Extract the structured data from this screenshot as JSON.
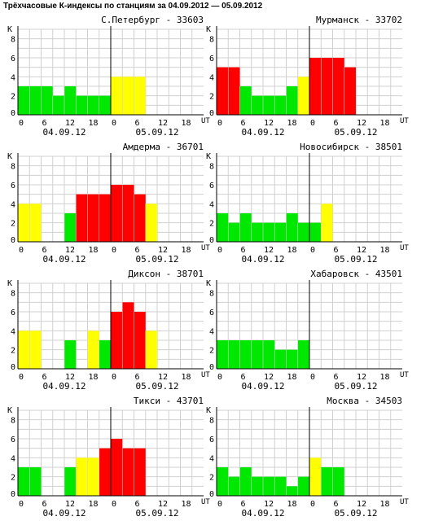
{
  "page": {
    "title": "Трёхчасовые К-индексы по станциям за 04.09.2012 — 05.09.2012"
  },
  "axis": {
    "y_letter": "К",
    "y_ticks": [
      "0",
      "2",
      "4",
      "6",
      "8"
    ],
    "x_ticks": [
      "0",
      "6",
      "12",
      "18",
      "0",
      "6",
      "12",
      "18"
    ],
    "x_unit": "UT",
    "dates": [
      "04.09.12",
      "05.09.12"
    ]
  },
  "colors": {
    "quiet": "#00e800",
    "unsettled": "#ffff00",
    "storm": "#ff0000",
    "grid": "#d0d0d0"
  },
  "chart_data": [
    {
      "type": "bar",
      "title": "С.Петербург - 33603",
      "ylim": [
        0,
        9
      ],
      "x": [
        "0",
        "3",
        "6",
        "9",
        "12",
        "15",
        "18",
        "21",
        "0",
        "3",
        "6",
        "9",
        "12",
        "15",
        "18",
        "21"
      ],
      "values": [
        3,
        3,
        3,
        2,
        3,
        2,
        2,
        2,
        4,
        4,
        4,
        null,
        null,
        null,
        null,
        null
      ]
    },
    {
      "type": "bar",
      "title": "Мурманск - 33702",
      "ylim": [
        0,
        9
      ],
      "x": [
        "0",
        "3",
        "6",
        "9",
        "12",
        "15",
        "18",
        "21",
        "0",
        "3",
        "6",
        "9",
        "12",
        "15",
        "18",
        "21"
      ],
      "values": [
        5,
        5,
        3,
        2,
        2,
        2,
        3,
        4,
        6,
        6,
        6,
        5,
        null,
        null,
        null,
        null
      ]
    },
    {
      "type": "bar",
      "title": "Амдерма - 36701",
      "ylim": [
        0,
        9
      ],
      "x": [
        "0",
        "3",
        "6",
        "9",
        "12",
        "15",
        "18",
        "21",
        "0",
        "3",
        "6",
        "9",
        "12",
        "15",
        "18",
        "21"
      ],
      "values": [
        4,
        4,
        null,
        null,
        3,
        5,
        5,
        5,
        6,
        6,
        5,
        4,
        null,
        null,
        null,
        null
      ]
    },
    {
      "type": "bar",
      "title": "Новосибирск - 38501",
      "ylim": [
        0,
        9
      ],
      "x": [
        "0",
        "3",
        "6",
        "9",
        "12",
        "15",
        "18",
        "21",
        "0",
        "3",
        "6",
        "9",
        "12",
        "15",
        "18",
        "21"
      ],
      "values": [
        3,
        2,
        3,
        2,
        2,
        2,
        3,
        2,
        2,
        4,
        null,
        null,
        null,
        null,
        null,
        null
      ]
    },
    {
      "type": "bar",
      "title": "Диксон - 38701",
      "ylim": [
        0,
        9
      ],
      "x": [
        "0",
        "3",
        "6",
        "9",
        "12",
        "15",
        "18",
        "21",
        "0",
        "3",
        "6",
        "9",
        "12",
        "15",
        "18",
        "21"
      ],
      "values": [
        4,
        4,
        null,
        null,
        3,
        null,
        4,
        3,
        6,
        7,
        6,
        4,
        null,
        null,
        null,
        null
      ]
    },
    {
      "type": "bar",
      "title": "Хабаровск - 43501",
      "ylim": [
        0,
        9
      ],
      "x": [
        "0",
        "3",
        "6",
        "9",
        "12",
        "15",
        "18",
        "21",
        "0",
        "3",
        "6",
        "9",
        "12",
        "15",
        "18",
        "21"
      ],
      "values": [
        3,
        3,
        3,
        3,
        3,
        2,
        2,
        3,
        null,
        null,
        null,
        null,
        null,
        null,
        null,
        null
      ]
    },
    {
      "type": "bar",
      "title": "Тикси - 43701",
      "ylim": [
        0,
        9
      ],
      "x": [
        "0",
        "3",
        "6",
        "9",
        "12",
        "15",
        "18",
        "21",
        "0",
        "3",
        "6",
        "9",
        "12",
        "15",
        "18",
        "21"
      ],
      "values": [
        3,
        3,
        null,
        null,
        3,
        4,
        4,
        5,
        6,
        5,
        5,
        null,
        null,
        null,
        null,
        null
      ]
    },
    {
      "type": "bar",
      "title": "Москва - 34503",
      "ylim": [
        0,
        9
      ],
      "x": [
        "0",
        "3",
        "6",
        "9",
        "12",
        "15",
        "18",
        "21",
        "0",
        "3",
        "6",
        "9",
        "12",
        "15",
        "18",
        "21"
      ],
      "values": [
        3,
        2,
        3,
        2,
        2,
        2,
        1,
        2,
        4,
        3,
        3,
        null,
        null,
        null,
        null,
        null
      ]
    }
  ]
}
